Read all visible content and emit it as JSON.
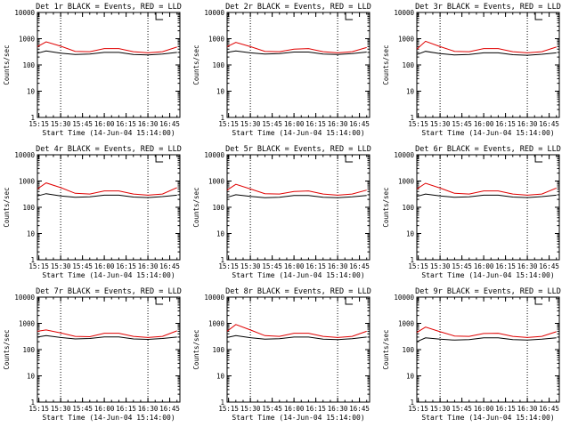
{
  "x_axis_label": "Start Time (14-Jun-04 15:14:00)",
  "y_axis_label": "Counts/sec",
  "x_tick_labels": [
    "15:15",
    "15:30",
    "15:45",
    "16:00",
    "16:15",
    "16:30",
    "16:45"
  ],
  "y_tick_labels": [
    "1",
    "10",
    "100",
    "1000",
    "10000"
  ],
  "colors": {
    "events": "#000000",
    "lld": "#e00000"
  },
  "chart_data": [
    {
      "type": "line",
      "title": "Det 1r BLACK = Events, RED = LLD",
      "xlabel": "Start Time (14-Jun-04 15:14:00)",
      "ylabel": "Counts/sec",
      "ylim": [
        1,
        10000
      ],
      "yscale": "log",
      "x_range": [
        "15:14",
        "16:52"
      ],
      "markers": [
        "15:30",
        "16:30"
      ],
      "series": [
        {
          "color": "red",
          "points": [
            [
              "15:14",
              500
            ],
            [
              "15:20",
              760
            ],
            [
              "15:30",
              520
            ],
            [
              "15:40",
              330
            ],
            [
              "15:50",
              320
            ],
            [
              "16:00",
              420
            ],
            [
              "16:10",
              420
            ],
            [
              "16:20",
              320
            ],
            [
              "16:30",
              290
            ],
            [
              "16:40",
              320
            ],
            [
              "16:50",
              480
            ]
          ]
        },
        {
          "color": "black",
          "points": [
            [
              "15:14",
              280
            ],
            [
              "15:20",
              340
            ],
            [
              "15:30",
              280
            ],
            [
              "15:40",
              250
            ],
            [
              "15:50",
              260
            ],
            [
              "16:00",
              300
            ],
            [
              "16:10",
              300
            ],
            [
              "16:20",
              250
            ],
            [
              "16:30",
              240
            ],
            [
              "16:40",
              260
            ],
            [
              "16:50",
              300
            ]
          ]
        }
      ]
    },
    {
      "type": "line",
      "title": "Det 2r BLACK = Events, RED = LLD",
      "xlabel": "Start Time (14-Jun-04 15:14:00)",
      "ylabel": "Counts/sec",
      "ylim": [
        1,
        10000
      ],
      "yscale": "log",
      "x_range": [
        "15:14",
        "16:52"
      ],
      "markers": [
        "15:30",
        "16:30"
      ],
      "series": [
        {
          "color": "red",
          "points": [
            [
              "15:14",
              500
            ],
            [
              "15:20",
              720
            ],
            [
              "15:30",
              500
            ],
            [
              "15:40",
              330
            ],
            [
              "15:50",
              320
            ],
            [
              "16:00",
              400
            ],
            [
              "16:10",
              420
            ],
            [
              "16:20",
              320
            ],
            [
              "16:30",
              290
            ],
            [
              "16:40",
              320
            ],
            [
              "16:50",
              460
            ]
          ]
        },
        {
          "color": "black",
          "points": [
            [
              "15:14",
              300
            ],
            [
              "15:20",
              340
            ],
            [
              "15:30",
              290
            ],
            [
              "15:40",
              260
            ],
            [
              "15:50",
              270
            ],
            [
              "16:00",
              310
            ],
            [
              "16:10",
              310
            ],
            [
              "16:20",
              260
            ],
            [
              "16:30",
              250
            ],
            [
              "16:40",
              270
            ],
            [
              "16:50",
              310
            ]
          ]
        }
      ]
    },
    {
      "type": "line",
      "title": "Det 3r BLACK = Events, RED = LLD",
      "xlabel": "Start Time (14-Jun-04 15:14:00)",
      "ylabel": "Counts/sec",
      "ylim": [
        1,
        10000
      ],
      "yscale": "log",
      "x_range": [
        "15:14",
        "16:52"
      ],
      "markers": [
        "15:30",
        "16:30"
      ],
      "series": [
        {
          "color": "red",
          "points": [
            [
              "15:14",
              400
            ],
            [
              "15:20",
              800
            ],
            [
              "15:30",
              500
            ],
            [
              "15:40",
              330
            ],
            [
              "15:50",
              320
            ],
            [
              "16:00",
              420
            ],
            [
              "16:10",
              420
            ],
            [
              "16:20",
              320
            ],
            [
              "16:30",
              290
            ],
            [
              "16:40",
              320
            ],
            [
              "16:50",
              480
            ]
          ]
        },
        {
          "color": "black",
          "points": [
            [
              "15:14",
              250
            ],
            [
              "15:20",
              330
            ],
            [
              "15:30",
              270
            ],
            [
              "15:40",
              240
            ],
            [
              "15:50",
              250
            ],
            [
              "16:00",
              290
            ],
            [
              "16:10",
              290
            ],
            [
              "16:20",
              245
            ],
            [
              "16:30",
              235
            ],
            [
              "16:40",
              255
            ],
            [
              "16:50",
              290
            ]
          ]
        }
      ]
    },
    {
      "type": "line",
      "title": "Det 4r BLACK = Events, RED = LLD",
      "xlabel": "Start Time (14-Jun-04 15:14:00)",
      "ylabel": "Counts/sec",
      "ylim": [
        1,
        10000
      ],
      "yscale": "log",
      "x_range": [
        "15:14",
        "16:52"
      ],
      "markers": [
        "15:30",
        "16:30"
      ],
      "series": [
        {
          "color": "red",
          "points": [
            [
              "15:14",
              500
            ],
            [
              "15:20",
              850
            ],
            [
              "15:30",
              560
            ],
            [
              "15:40",
              340
            ],
            [
              "15:50",
              320
            ],
            [
              "16:00",
              420
            ],
            [
              "16:10",
              420
            ],
            [
              "16:20",
              320
            ],
            [
              "16:30",
              290
            ],
            [
              "16:40",
              320
            ],
            [
              "16:50",
              560
            ]
          ]
        },
        {
          "color": "black",
          "points": [
            [
              "15:14",
              270
            ],
            [
              "15:20",
              330
            ],
            [
              "15:30",
              270
            ],
            [
              "15:40",
              240
            ],
            [
              "15:50",
              250
            ],
            [
              "16:00",
              290
            ],
            [
              "16:10",
              290
            ],
            [
              "16:20",
              245
            ],
            [
              "16:30",
              235
            ],
            [
              "16:40",
              255
            ],
            [
              "16:50",
              290
            ]
          ]
        }
      ]
    },
    {
      "type": "line",
      "title": "Det 5r BLACK = Events, RED = LLD",
      "xlabel": "Start Time (14-Jun-04 15:14:00)",
      "ylabel": "Counts/sec",
      "ylim": [
        1,
        10000
      ],
      "yscale": "log",
      "x_range": [
        "15:14",
        "16:52"
      ],
      "markers": [
        "15:30",
        "16:30"
      ],
      "series": [
        {
          "color": "red",
          "points": [
            [
              "15:14",
              450
            ],
            [
              "15:20",
              750
            ],
            [
              "15:30",
              500
            ],
            [
              "15:40",
              330
            ],
            [
              "15:50",
              320
            ],
            [
              "16:00",
              400
            ],
            [
              "16:10",
              420
            ],
            [
              "16:20",
              320
            ],
            [
              "16:30",
              290
            ],
            [
              "16:40",
              320
            ],
            [
              "16:50",
              450
            ]
          ]
        },
        {
          "color": "black",
          "points": [
            [
              "15:14",
              240
            ],
            [
              "15:20",
              300
            ],
            [
              "15:30",
              260
            ],
            [
              "15:40",
              230
            ],
            [
              "15:50",
              240
            ],
            [
              "16:00",
              280
            ],
            [
              "16:10",
              280
            ],
            [
              "16:20",
              240
            ],
            [
              "16:30",
              230
            ],
            [
              "16:40",
              250
            ],
            [
              "16:50",
              280
            ]
          ]
        }
      ]
    },
    {
      "type": "line",
      "title": "Det 6r BLACK = Events, RED = LLD",
      "xlabel": "Start Time (14-Jun-04 15:14:00)",
      "ylabel": "Counts/sec",
      "ylim": [
        1,
        10000
      ],
      "yscale": "log",
      "x_range": [
        "15:14",
        "16:52"
      ],
      "markers": [
        "15:30",
        "16:30"
      ],
      "series": [
        {
          "color": "red",
          "points": [
            [
              "15:14",
              500
            ],
            [
              "15:20",
              820
            ],
            [
              "15:30",
              540
            ],
            [
              "15:40",
              340
            ],
            [
              "15:50",
              320
            ],
            [
              "16:00",
              420
            ],
            [
              "16:10",
              420
            ],
            [
              "16:20",
              320
            ],
            [
              "16:30",
              290
            ],
            [
              "16:40",
              320
            ],
            [
              "16:50",
              540
            ]
          ]
        },
        {
          "color": "black",
          "points": [
            [
              "15:14",
              260
            ],
            [
              "15:20",
              320
            ],
            [
              "15:30",
              270
            ],
            [
              "15:40",
              240
            ],
            [
              "15:50",
              250
            ],
            [
              "16:00",
              290
            ],
            [
              "16:10",
              290
            ],
            [
              "16:20",
              245
            ],
            [
              "16:30",
              235
            ],
            [
              "16:40",
              255
            ],
            [
              "16:50",
              290
            ]
          ]
        }
      ]
    },
    {
      "type": "line",
      "title": "Det 7r BLACK = Events, RED = LLD",
      "xlabel": "Start Time (14-Jun-04 15:14:00)",
      "ylabel": "Counts/sec",
      "ylim": [
        1,
        10000
      ],
      "yscale": "log",
      "x_range": [
        "15:14",
        "16:52"
      ],
      "markers": [
        "15:30",
        "16:30"
      ],
      "series": [
        {
          "color": "red",
          "points": [
            [
              "15:14",
              500
            ],
            [
              "15:20",
              560
            ],
            [
              "15:30",
              430
            ],
            [
              "15:40",
              320
            ],
            [
              "15:50",
              310
            ],
            [
              "16:00",
              420
            ],
            [
              "16:10",
              420
            ],
            [
              "16:20",
              320
            ],
            [
              "16:30",
              290
            ],
            [
              "16:40",
              320
            ],
            [
              "16:50",
              520
            ]
          ]
        },
        {
          "color": "black",
          "points": [
            [
              "15:14",
              300
            ],
            [
              "15:20",
              340
            ],
            [
              "15:30",
              290
            ],
            [
              "15:40",
              255
            ],
            [
              "15:50",
              265
            ],
            [
              "16:00",
              305
            ],
            [
              "16:10",
              305
            ],
            [
              "16:20",
              255
            ],
            [
              "16:30",
              245
            ],
            [
              "16:40",
              265
            ],
            [
              "16:50",
              300
            ]
          ]
        }
      ]
    },
    {
      "type": "line",
      "title": "Det 8r BLACK = Events, RED = LLD",
      "xlabel": "Start Time (14-Jun-04 15:14:00)",
      "ylabel": "Counts/sec",
      "ylim": [
        1,
        10000
      ],
      "yscale": "log",
      "x_range": [
        "15:14",
        "16:52"
      ],
      "markers": [
        "15:30",
        "16:30"
      ],
      "series": [
        {
          "color": "red",
          "points": [
            [
              "15:14",
              500
            ],
            [
              "15:20",
              900
            ],
            [
              "15:30",
              560
            ],
            [
              "15:40",
              340
            ],
            [
              "15:50",
              320
            ],
            [
              "16:00",
              420
            ],
            [
              "16:10",
              420
            ],
            [
              "16:20",
              320
            ],
            [
              "16:30",
              290
            ],
            [
              "16:40",
              320
            ],
            [
              "16:50",
              500
            ]
          ]
        },
        {
          "color": "black",
          "points": [
            [
              "15:14",
              290
            ],
            [
              "15:20",
              340
            ],
            [
              "15:30",
              285
            ],
            [
              "15:40",
              250
            ],
            [
              "15:50",
              260
            ],
            [
              "16:00",
              300
            ],
            [
              "16:10",
              300
            ],
            [
              "16:20",
              250
            ],
            [
              "16:30",
              240
            ],
            [
              "16:40",
              260
            ],
            [
              "16:50",
              300
            ]
          ]
        }
      ]
    },
    {
      "type": "line",
      "title": "Det 9r BLACK = Events, RED = LLD",
      "xlabel": "Start Time (14-Jun-04 15:14:00)",
      "ylabel": "Counts/sec",
      "ylim": [
        1,
        10000
      ],
      "yscale": "log",
      "x_range": [
        "15:14",
        "16:52"
      ],
      "markers": [
        "15:30",
        "16:30"
      ],
      "series": [
        {
          "color": "red",
          "points": [
            [
              "15:14",
              450
            ],
            [
              "15:20",
              720
            ],
            [
              "15:30",
              480
            ],
            [
              "15:40",
              330
            ],
            [
              "15:50",
              320
            ],
            [
              "16:00",
              410
            ],
            [
              "16:10",
              420
            ],
            [
              "16:20",
              320
            ],
            [
              "16:30",
              290
            ],
            [
              "16:40",
              320
            ],
            [
              "16:50",
              480
            ]
          ]
        },
        {
          "color": "black",
          "points": [
            [
              "15:14",
              200
            ],
            [
              "15:20",
              280
            ],
            [
              "15:30",
              250
            ],
            [
              "15:40",
              230
            ],
            [
              "15:50",
              240
            ],
            [
              "16:00",
              280
            ],
            [
              "16:10",
              280
            ],
            [
              "16:20",
              240
            ],
            [
              "16:30",
              230
            ],
            [
              "16:40",
              250
            ],
            [
              "16:50",
              280
            ]
          ]
        }
      ]
    }
  ]
}
